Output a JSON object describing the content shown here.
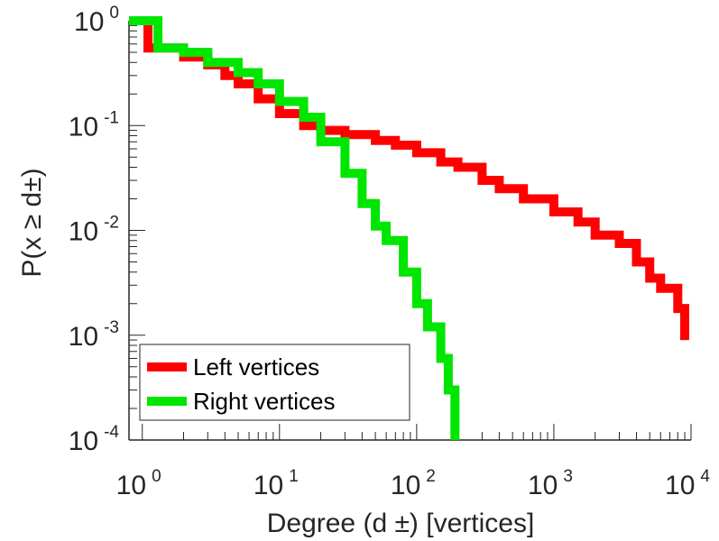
{
  "chart_data": {
    "type": "line",
    "step": true,
    "xscale": "log",
    "yscale": "log",
    "xlim": [
      0.8,
      10000
    ],
    "ylim": [
      0.0001,
      1
    ],
    "xlabel": "Degree (d ±) [vertices]",
    "ylabel": "P(x ≥ d±)",
    "xticks": [
      {
        "base": "10",
        "exp": "0"
      },
      {
        "base": "10",
        "exp": "1"
      },
      {
        "base": "10",
        "exp": "2"
      },
      {
        "base": "10",
        "exp": "3"
      },
      {
        "base": "10",
        "exp": "4"
      }
    ],
    "yticks": [
      {
        "base": "10",
        "exp": "0"
      },
      {
        "base": "10",
        "exp": "-1"
      },
      {
        "base": "10",
        "exp": "-2"
      },
      {
        "base": "10",
        "exp": "-3"
      },
      {
        "base": "10",
        "exp": "-4"
      }
    ],
    "grid": false,
    "legend_position": "bottom-left",
    "series": [
      {
        "name": "Left vertices",
        "color": "#ff0000",
        "points": [
          [
            0.8,
            1.0
          ],
          [
            1.1,
            0.55
          ],
          [
            2,
            0.45
          ],
          [
            3,
            0.38
          ],
          [
            4,
            0.3
          ],
          [
            5,
            0.25
          ],
          [
            7,
            0.18
          ],
          [
            10,
            0.13
          ],
          [
            15,
            0.1
          ],
          [
            20,
            0.09
          ],
          [
            30,
            0.082
          ],
          [
            50,
            0.072
          ],
          [
            70,
            0.065
          ],
          [
            100,
            0.055
          ],
          [
            150,
            0.045
          ],
          [
            200,
            0.04
          ],
          [
            300,
            0.03
          ],
          [
            400,
            0.025
          ],
          [
            600,
            0.02
          ],
          [
            1000,
            0.015
          ],
          [
            1500,
            0.012
          ],
          [
            2000,
            0.009
          ],
          [
            3000,
            0.0075
          ],
          [
            4000,
            0.005
          ],
          [
            5000,
            0.0035
          ],
          [
            6000,
            0.0028
          ],
          [
            8000,
            0.0018
          ],
          [
            9000,
            0.0012
          ],
          [
            9000,
            0.0009
          ]
        ]
      },
      {
        "name": "Right vertices",
        "color": "#00e600",
        "points": [
          [
            0.8,
            1.0
          ],
          [
            1.3,
            0.55
          ],
          [
            2,
            0.5
          ],
          [
            3,
            0.4
          ],
          [
            5,
            0.32
          ],
          [
            7,
            0.25
          ],
          [
            10,
            0.17
          ],
          [
            15,
            0.12
          ],
          [
            20,
            0.07
          ],
          [
            30,
            0.035
          ],
          [
            40,
            0.018
          ],
          [
            50,
            0.011
          ],
          [
            60,
            0.008
          ],
          [
            80,
            0.004
          ],
          [
            100,
            0.002
          ],
          [
            120,
            0.0012
          ],
          [
            150,
            0.0006
          ],
          [
            170,
            0.0003
          ],
          [
            190,
            0.0001
          ]
        ]
      }
    ]
  }
}
